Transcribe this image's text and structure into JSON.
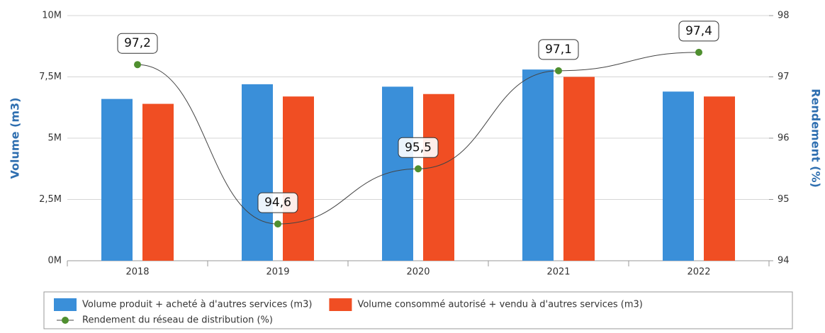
{
  "chart_data": {
    "type": "bar",
    "categories": [
      "2018",
      "2019",
      "2020",
      "2021",
      "2022"
    ],
    "y_label": "Volume (m3)",
    "y2_label": "Rendement (%)",
    "ylim": [
      0,
      10000000
    ],
    "yticks": [
      {
        "value": 0,
        "label": "0M"
      },
      {
        "value": 2500000,
        "label": "2,5M"
      },
      {
        "value": 5000000,
        "label": "5M"
      },
      {
        "value": 7500000,
        "label": "7,5M"
      },
      {
        "value": 10000000,
        "label": "10M"
      }
    ],
    "y2lim": [
      94,
      98
    ],
    "y2ticks": [
      94,
      95,
      96,
      97,
      98
    ],
    "grid": true,
    "legend": "bottom",
    "series": [
      {
        "name": "Volume produit + acheté à d'autres services (m3)",
        "color": "#3a8fd9",
        "type": "bar",
        "values": [
          6600000,
          7200000,
          7100000,
          7800000,
          6900000
        ]
      },
      {
        "name": "Volume consommé autorisé + vendu à d'autres services (m3)",
        "color": "#f04e23",
        "type": "bar",
        "values": [
          6400000,
          6700000,
          6800000,
          7500000,
          6700000
        ]
      },
      {
        "name": "Rendement du réseau de distribution (%)",
        "color": "#4f8f2f",
        "type": "line",
        "axis": "y2",
        "values": [
          97.2,
          94.6,
          95.5,
          97.1,
          97.4
        ],
        "value_labels": [
          "97,2",
          "94,6",
          "95,5",
          "97,1",
          "97,4"
        ]
      }
    ]
  }
}
